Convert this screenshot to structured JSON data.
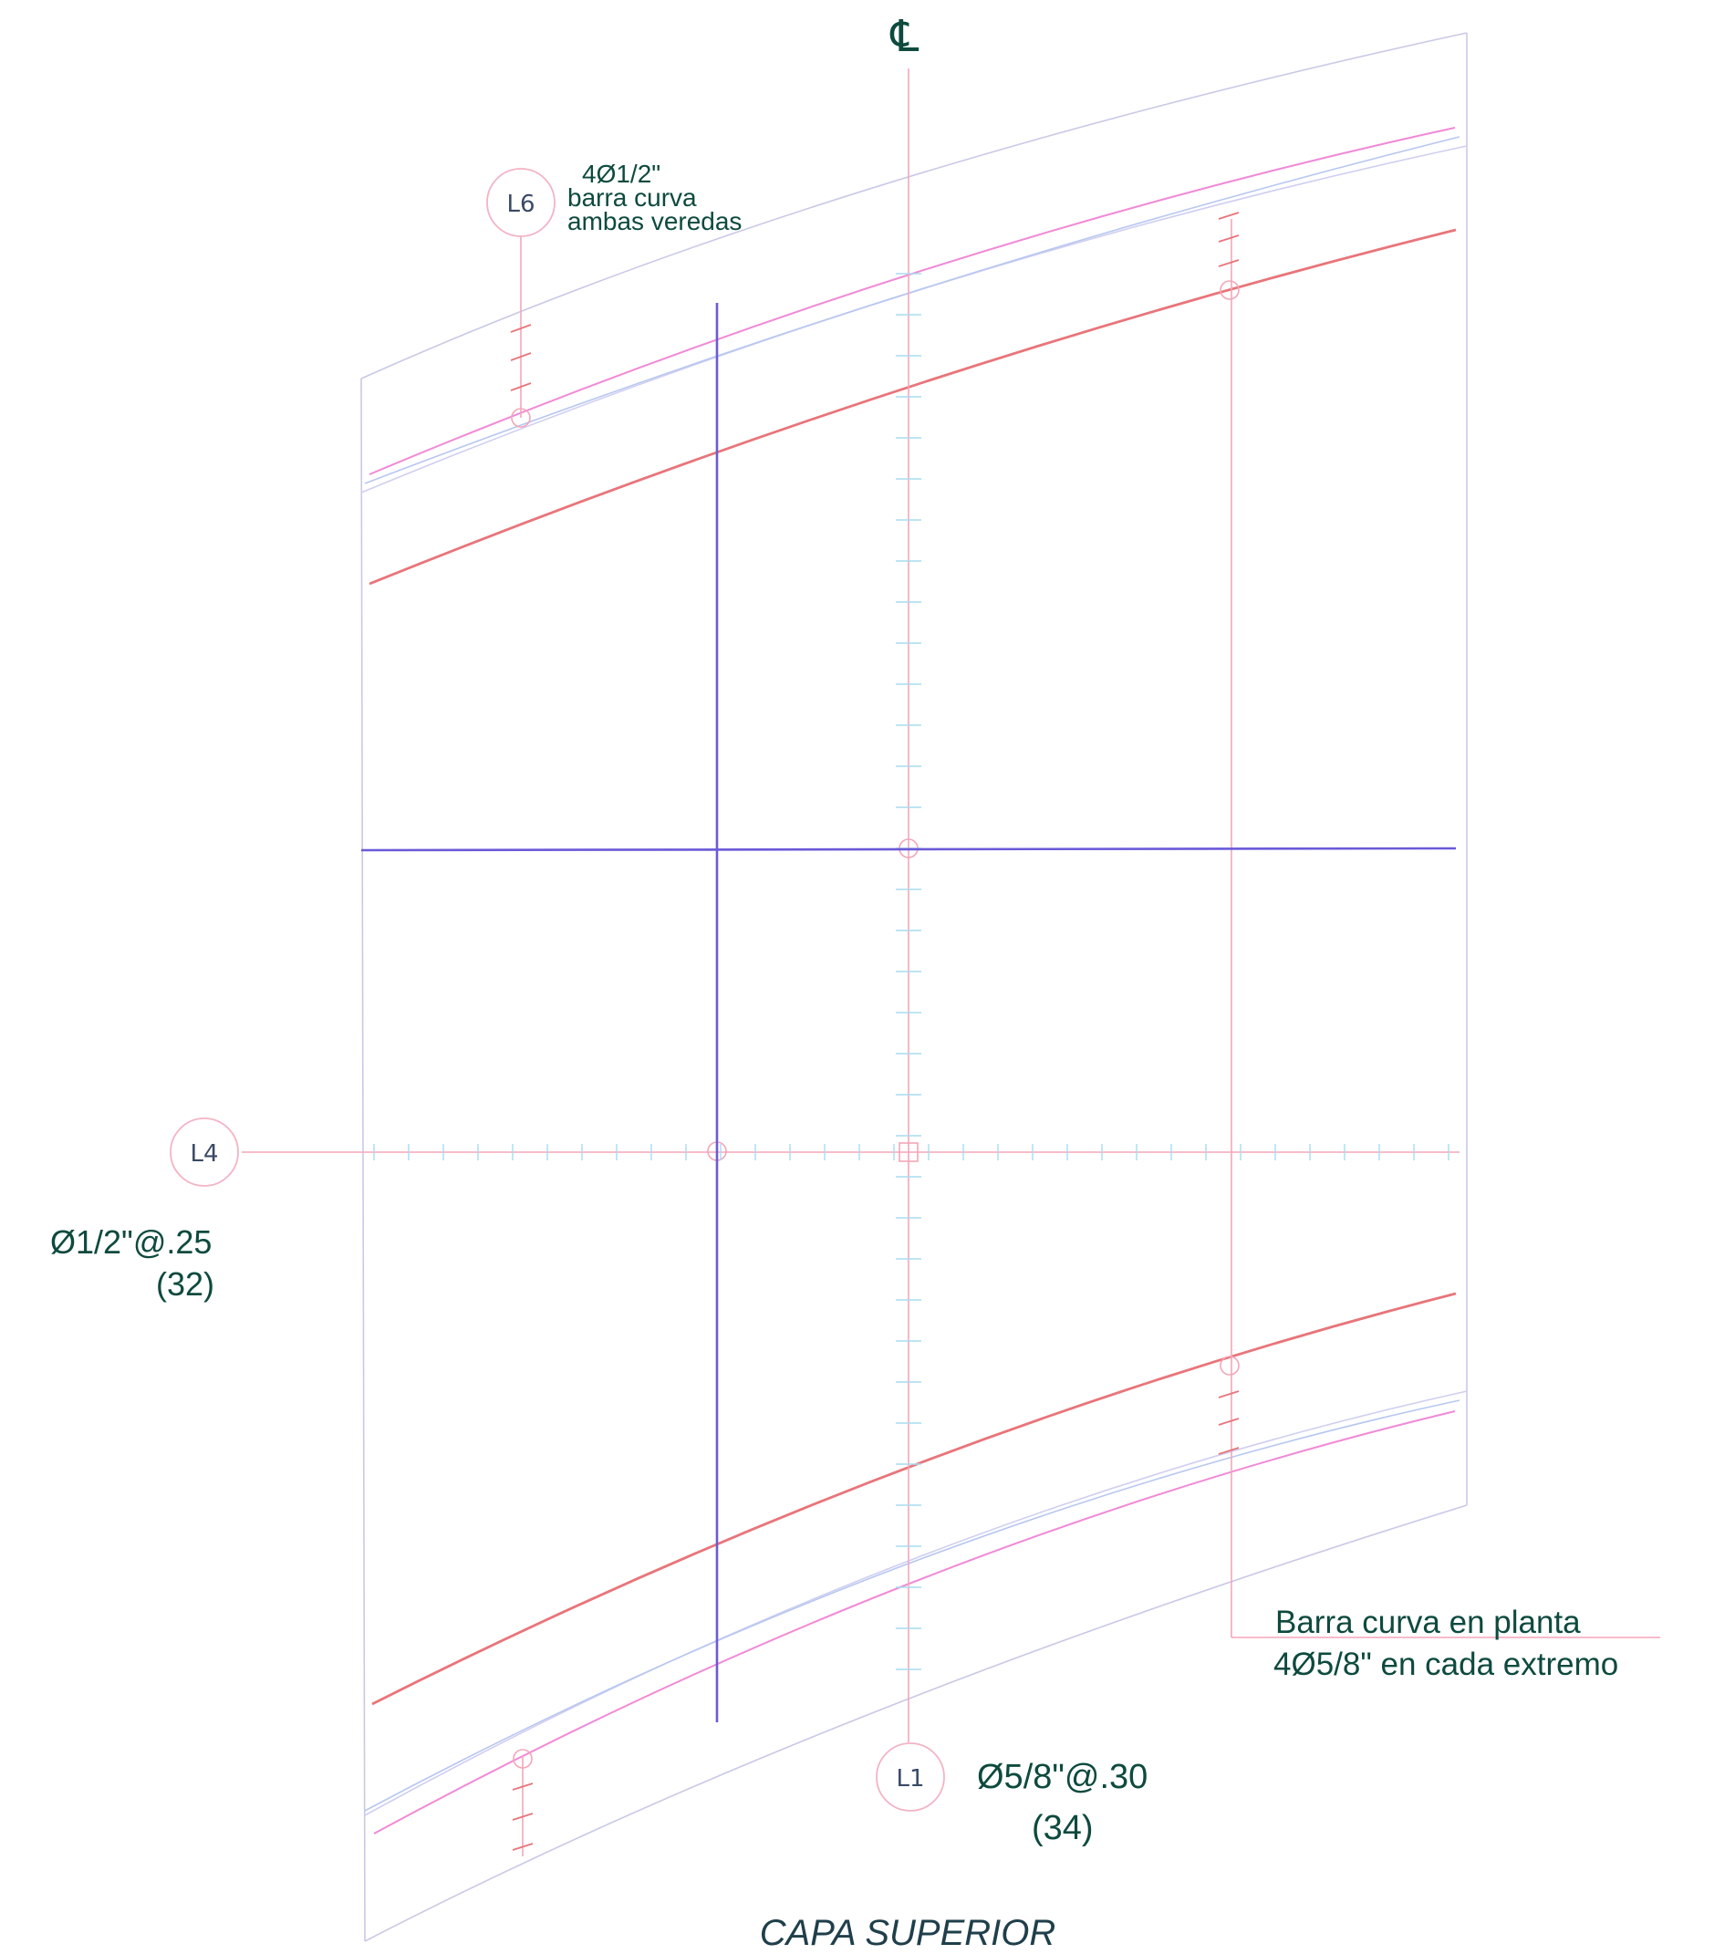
{
  "centerline": {
    "symbol": "℄"
  },
  "callouts": {
    "l6": {
      "tag": "L6",
      "line1": "4Ø1/2\"",
      "line2": "barra curva",
      "line3": "ambas veredas"
    },
    "l4": {
      "tag": "L4",
      "line1": "Ø1/2\"@.25",
      "line2": "(32)"
    },
    "l1": {
      "tag": "L1",
      "line1": "Ø5/8\"@.30",
      "line2": "(34)"
    },
    "edge_bar": {
      "line1": "Barra curva en planta",
      "line2": "4Ø5/8\" en cada extremo"
    }
  },
  "title": "CAPA SUPERIOR",
  "colors": {
    "rebar_curve": "#e8757a",
    "sidewalk_bar": "#f08ad6",
    "guide_blue": "#6a5ad8",
    "outline": "#c9c9e6",
    "dimension": "#f3a6b8",
    "tick": "#a8dcef",
    "text": "#0e4a3e"
  }
}
